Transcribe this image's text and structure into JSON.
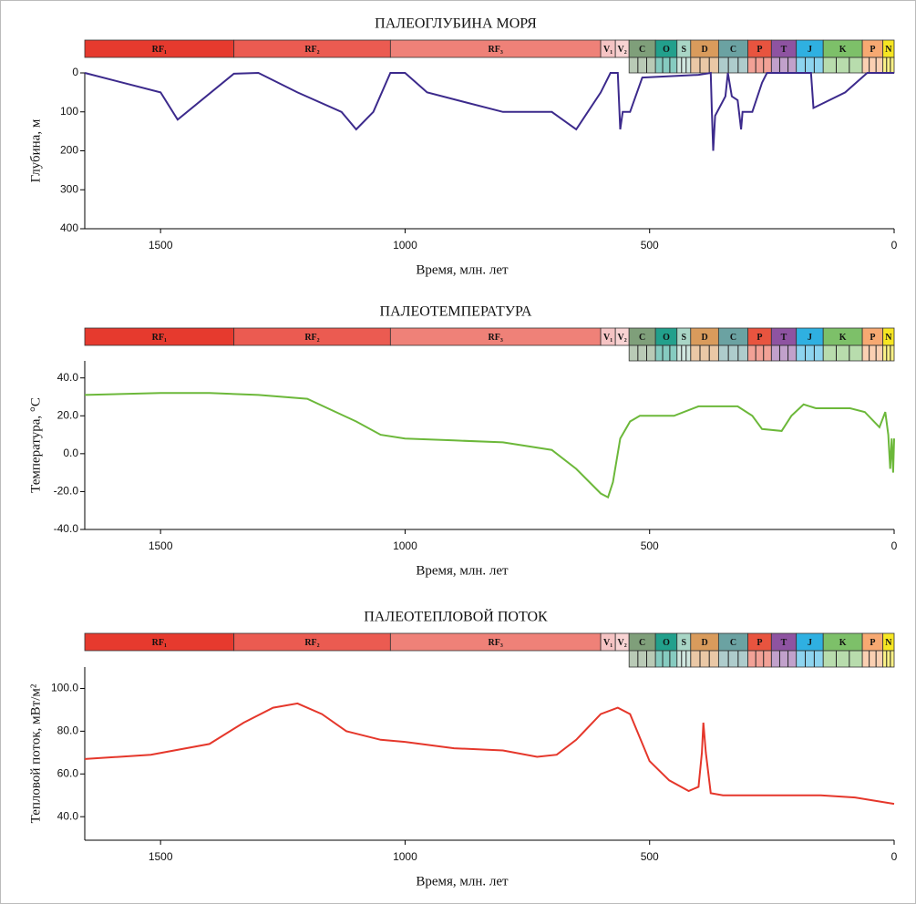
{
  "timescale": {
    "labels": [
      "RF₁",
      "RF₂",
      "RF₃",
      "V₁",
      "V₂",
      "C",
      "O",
      "S",
      "D",
      "C",
      "P",
      "T",
      "J",
      "K",
      "P",
      "N"
    ],
    "boundaries": [
      1655,
      1350,
      1030,
      600,
      570,
      542,
      488,
      444,
      416,
      359,
      299,
      251,
      200,
      145,
      65,
      23,
      0
    ],
    "colors": [
      "#e63a2e",
      "#eb5b51",
      "#ef8178",
      "#f5c3c3",
      "#f8d3d3",
      "#7f9f7a",
      "#22a08c",
      "#a9d6c6",
      "#d99b5c",
      "#6ba2a2",
      "#e8543f",
      "#8e53a1",
      "#2fb0e1",
      "#7dc069",
      "#f7a972",
      "#f6e622"
    ]
  },
  "chart_data": [
    {
      "type": "line",
      "title": "ПАЛЕОГЛУБИНА МОРЯ",
      "xlabel": "Время, млн. лет",
      "ylabel": "Глубина, м",
      "xlim": [
        1655,
        0
      ],
      "xticks": [
        1500,
        1000,
        500,
        0
      ],
      "ylim": [
        400,
        0
      ],
      "yticks": [
        0,
        100,
        200,
        300,
        400
      ],
      "color": "#3c2a8c",
      "x": [
        1655,
        1500,
        1465,
        1350,
        1300,
        1220,
        1130,
        1100,
        1065,
        1030,
        1000,
        955,
        800,
        700,
        650,
        600,
        580,
        565,
        560,
        555,
        540,
        515,
        400,
        375,
        373,
        370,
        366,
        345,
        340,
        332,
        320,
        313,
        310,
        290,
        270,
        260,
        170,
        165,
        100,
        55,
        0
      ],
      "values": [
        0,
        50,
        120,
        2,
        0,
        50,
        100,
        145,
        100,
        0,
        0,
        50,
        100,
        100,
        145,
        50,
        0,
        0,
        145,
        100,
        100,
        12,
        5,
        0,
        90,
        200,
        110,
        60,
        0,
        60,
        70,
        145,
        100,
        100,
        25,
        0,
        0,
        90,
        50,
        0,
        0
      ]
    },
    {
      "type": "line",
      "title": "ПАЛЕОТЕМПЕРАТУРА",
      "xlabel": "Время, млн. лет",
      "ylabel": "Температура, °С",
      "xlim": [
        1655,
        0
      ],
      "xticks": [
        1500,
        1000,
        500,
        0
      ],
      "ylim": [
        -40,
        49
      ],
      "yticks": [
        {
          "value": 40,
          "label": "40.0"
        },
        {
          "value": 20,
          "label": "20.0"
        },
        {
          "value": 0,
          "label": "0.0"
        },
        {
          "value": -20,
          "label": "-20.0"
        },
        {
          "value": -40,
          "label": "-40.0"
        }
      ],
      "color": "#6cb83a",
      "x": [
        1655,
        1500,
        1400,
        1300,
        1200,
        1100,
        1050,
        1000,
        900,
        800,
        700,
        650,
        600,
        585,
        575,
        560,
        540,
        520,
        450,
        400,
        320,
        290,
        270,
        230,
        210,
        185,
        160,
        130,
        90,
        60,
        30,
        18,
        12,
        8,
        5,
        2,
        0
      ],
      "values": [
        31,
        32,
        32,
        31,
        29,
        17,
        10,
        8,
        7,
        6,
        2,
        -8,
        -21,
        -23,
        -15,
        8,
        17,
        20,
        20,
        25,
        25,
        20,
        13,
        12,
        20,
        26,
        24,
        24,
        24,
        22,
        14,
        22,
        10,
        -8,
        8,
        -10,
        8
      ]
    },
    {
      "type": "line",
      "title": "ПАЛЕОТЕПЛОВОЙ ПОТОК",
      "xlabel": "Время, млн. лет",
      "ylabel": "Тепловой поток, мВт/м²",
      "xlim": [
        1655,
        0
      ],
      "xticks": [
        1500,
        1000,
        500,
        0
      ],
      "ylim": [
        29,
        110
      ],
      "yticks": [
        {
          "value": 100,
          "label": "100.0"
        },
        {
          "value": 80,
          "label": "80.0"
        },
        {
          "value": 60,
          "label": "60.0"
        },
        {
          "value": 40,
          "label": "40.0"
        }
      ],
      "color": "#e5372b",
      "x": [
        1655,
        1520,
        1400,
        1330,
        1270,
        1220,
        1170,
        1120,
        1050,
        1000,
        900,
        800,
        730,
        690,
        650,
        600,
        565,
        540,
        500,
        460,
        420,
        400,
        393,
        390,
        385,
        375,
        350,
        250,
        150,
        80,
        0
      ],
      "values": [
        67,
        69,
        74,
        84,
        91,
        93,
        88,
        80,
        76,
        75,
        72,
        71,
        68,
        69,
        76,
        88,
        91,
        88,
        66,
        57,
        52,
        54,
        70,
        84,
        70,
        51,
        50,
        50,
        50,
        49,
        46
      ]
    }
  ]
}
